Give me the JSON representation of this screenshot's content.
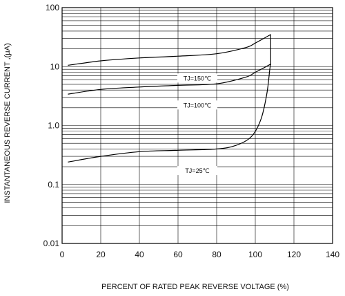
{
  "chart_data": {
    "type": "line",
    "title": "",
    "xlabel": "PERCENT OF RATED PEAK REVERSE VOLTAGE (%)",
    "ylabel": "INSTANTANEOUS REVERSE CURRENT ,(μA)",
    "xlim": [
      0,
      140
    ],
    "ylim": [
      0.01,
      100
    ],
    "y_scale": "log",
    "grid": true,
    "x_ticks": [
      0,
      20,
      40,
      60,
      80,
      100,
      120,
      140
    ],
    "x_tick_labels": [
      "0",
      "20",
      "40",
      "60",
      "80",
      "100",
      "120",
      "140"
    ],
    "y_ticks": [
      0.01,
      0.1,
      1,
      10,
      100
    ],
    "y_tick_labels": [
      "0.01",
      "0.1",
      "1.0",
      "10",
      "100"
    ],
    "series": [
      {
        "name": "TJ=150℃",
        "x": [
          3,
          20,
          40,
          60,
          80,
          95,
          100,
          108
        ],
        "y": [
          10.5,
          12.5,
          14,
          15,
          16.5,
          21,
          25,
          35
        ]
      },
      {
        "name": "TJ=100℃",
        "x": [
          3,
          20,
          40,
          60,
          80,
          95,
          100,
          108
        ],
        "y": [
          3.4,
          4.1,
          4.5,
          4.8,
          5.1,
          6.6,
          8,
          11
        ]
      },
      {
        "name": "TJ=25℃",
        "x": [
          3,
          20,
          40,
          60,
          80,
          90,
          98,
          103,
          106,
          107.5,
          108
        ],
        "y": [
          0.24,
          0.3,
          0.36,
          0.38,
          0.4,
          0.46,
          0.65,
          1.3,
          3.5,
          9,
          11
        ]
      }
    ]
  }
}
